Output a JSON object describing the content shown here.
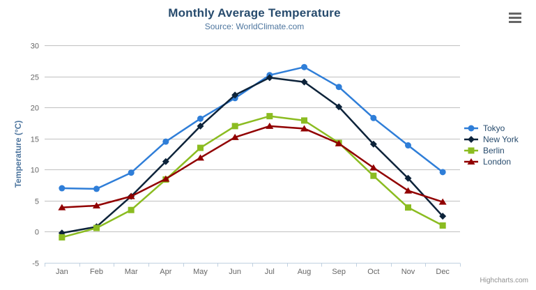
{
  "chart_data": {
    "type": "line",
    "title": "Monthly Average Temperature",
    "subtitle": "Source: WorldClimate.com",
    "categories": [
      "Jan",
      "Feb",
      "Mar",
      "Apr",
      "May",
      "Jun",
      "Jul",
      "Aug",
      "Sep",
      "Oct",
      "Nov",
      "Dec"
    ],
    "xlabel": "",
    "ylabel": "Temperature (°C)",
    "ylim": [
      -5,
      30
    ],
    "ytick_interval": 5,
    "grid": true,
    "legend_position": "right",
    "series": [
      {
        "name": "Tokyo",
        "marker": "circle",
        "color": "#2f7ed8",
        "values": [
          7.0,
          6.9,
          9.5,
          14.5,
          18.2,
          21.5,
          25.2,
          26.5,
          23.3,
          18.3,
          13.9,
          9.6
        ]
      },
      {
        "name": "New York",
        "marker": "diamond",
        "color": "#0d233a",
        "values": [
          -0.2,
          0.8,
          5.7,
          11.3,
          17.0,
          22.0,
          24.8,
          24.1,
          20.1,
          14.1,
          8.6,
          2.5
        ]
      },
      {
        "name": "Berlin",
        "marker": "square",
        "color": "#8bbc21",
        "values": [
          -0.9,
          0.6,
          3.5,
          8.4,
          13.5,
          17.0,
          18.6,
          17.9,
          14.3,
          9.0,
          3.9,
          1.0
        ]
      },
      {
        "name": "London",
        "marker": "triangle",
        "color": "#910000",
        "values": [
          3.9,
          4.2,
          5.7,
          8.5,
          11.9,
          15.2,
          17.0,
          16.6,
          14.2,
          10.3,
          6.6,
          4.8
        ]
      }
    ]
  },
  "export_menu": {
    "icon": "hamburger-icon"
  },
  "credits": {
    "label": "Highcharts.com"
  },
  "colors": {
    "title": "#274b6d",
    "subtitle": "#4d759e",
    "axis_labels": "#666666",
    "gridline": "#c0c0c0",
    "axis_line": "#c0d0e0"
  }
}
